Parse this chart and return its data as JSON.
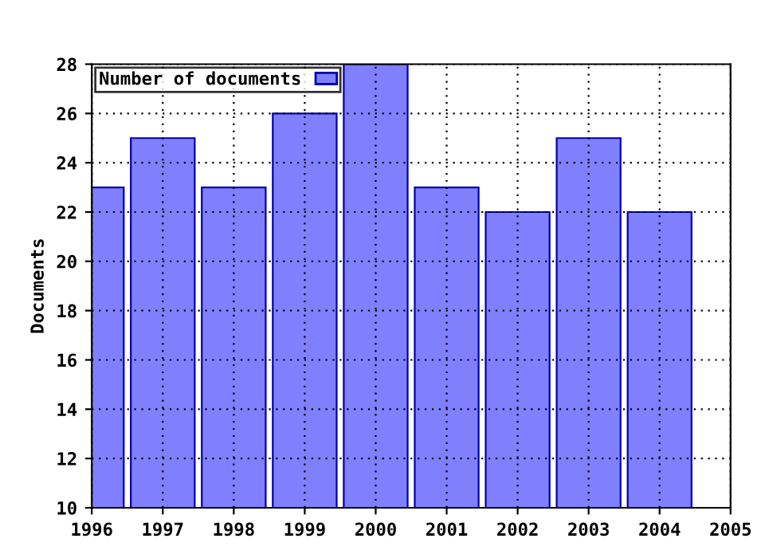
{
  "chart_data": {
    "type": "bar",
    "ylabel": "Documents",
    "x": [
      1996,
      1997,
      1998,
      1999,
      2000,
      2001,
      2002,
      2003,
      2004
    ],
    "series": [
      {
        "name": "Number of documents",
        "color": "#8080ff",
        "values": [
          23,
          25,
          23,
          26,
          28,
          23,
          22,
          25,
          22
        ]
      }
    ],
    "xlim": [
      1996,
      2005
    ],
    "xticks": [
      1996,
      1997,
      1998,
      1999,
      2000,
      2001,
      2002,
      2003,
      2004,
      2005
    ],
    "ylim": [
      10,
      28
    ],
    "yticks": [
      10,
      12,
      14,
      16,
      18,
      20,
      22,
      24,
      26,
      28
    ],
    "grid": true,
    "legend": "top left"
  }
}
